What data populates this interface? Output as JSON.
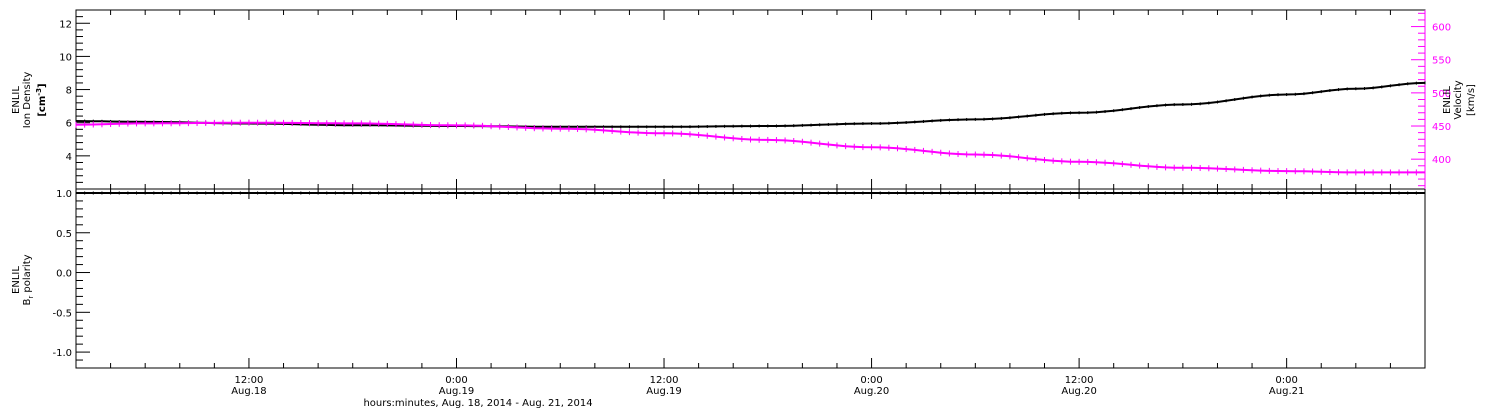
{
  "colors": {
    "axis": "#000000",
    "velocity": "#ff00ff",
    "density": "#000000"
  },
  "x_axis": {
    "label": "hours:minutes, Aug. 18, 2014 - Aug. 21, 2014",
    "ticks": [
      {
        "hours": 12,
        "time": "12:00",
        "date": "Aug.18"
      },
      {
        "hours": 24,
        "time": "0:00",
        "date": "Aug.19"
      },
      {
        "hours": 36,
        "time": "12:00",
        "date": "Aug.19"
      },
      {
        "hours": 48,
        "time": "0:00",
        "date": "Aug.20"
      },
      {
        "hours": 60,
        "time": "12:00",
        "date": "Aug.20"
      },
      {
        "hours": 72,
        "time": "0:00",
        "date": "Aug.21"
      }
    ],
    "range_hours": [
      2,
      80
    ]
  },
  "chart_data": [
    {
      "type": "line",
      "left_axis": {
        "label_lines": [
          "ENLIL",
          "Ion Density"
        ],
        "unit_base": "[cm",
        "unit_sup": "-3",
        "unit_close": "]",
        "ylim": [
          2.0,
          12.8
        ],
        "ticks": [
          "4",
          "6",
          "8",
          "10",
          "12"
        ]
      },
      "right_axis": {
        "label_lines": [
          "ENLIL",
          "Velocity"
        ],
        "unit": "[km/s]",
        "ylim": [
          355,
          625
        ],
        "ticks": [
          "400",
          "450",
          "500",
          "550",
          "600"
        ]
      },
      "series": [
        {
          "axis": "left",
          "color": "#000000",
          "x_hours": [
            2,
            6,
            12,
            18,
            24,
            30,
            36,
            42,
            48,
            54,
            60,
            66,
            72,
            76,
            80
          ],
          "values": [
            6.1,
            6.05,
            5.95,
            5.85,
            5.8,
            5.75,
            5.75,
            5.8,
            5.95,
            6.2,
            6.6,
            7.1,
            7.7,
            8.05,
            8.4
          ]
        },
        {
          "axis": "right",
          "color": "#ff00ff",
          "x_hours": [
            2,
            6,
            12,
            18,
            24,
            30,
            36,
            42,
            48,
            54,
            60,
            66,
            72,
            76,
            80
          ],
          "values": [
            452,
            454,
            455,
            454,
            451,
            446,
            439,
            429,
            418,
            407,
            396,
            387,
            382,
            380,
            380
          ]
        }
      ]
    },
    {
      "type": "line",
      "left_axis": {
        "label_lines": [
          "ENLIL",
          "B"
        ],
        "subscript": "r",
        "suffix": " polarity",
        "ylim": [
          -1.2,
          1.05
        ],
        "ticks": [
          "-1.0",
          "-0.5",
          "0.0",
          "0.5",
          "1.0"
        ]
      },
      "series": [
        {
          "axis": "left",
          "color": "#000000",
          "x_hours": [
            2,
            80
          ],
          "values": [
            1.0,
            1.0
          ]
        }
      ]
    }
  ]
}
